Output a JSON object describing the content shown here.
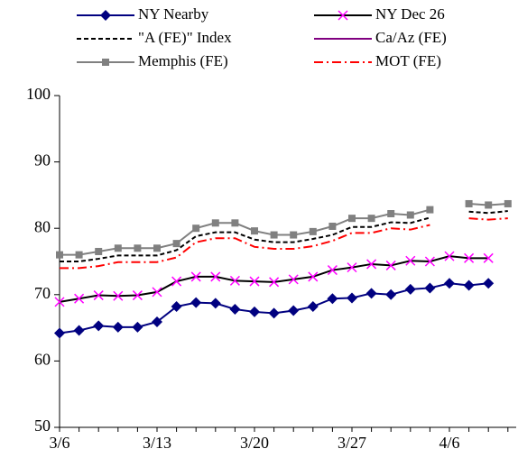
{
  "chart_data": {
    "type": "line",
    "categories": [
      "3/6",
      null,
      null,
      null,
      null,
      "3/13",
      null,
      null,
      null,
      null,
      "3/20",
      null,
      null,
      null,
      null,
      "3/27",
      null,
      null,
      null,
      null,
      "4/6",
      null,
      null,
      null
    ],
    "ylim": [
      50,
      100
    ],
    "yticks": [
      50,
      60,
      70,
      80,
      90,
      100
    ],
    "series": [
      {
        "name": "NY Nearby",
        "color": "#000080",
        "marker": "diamond",
        "dash": "solid",
        "values": [
          64.2,
          64.6,
          65.3,
          65.1,
          65.1,
          65.9,
          68.2,
          68.8,
          68.7,
          67.8,
          67.4,
          67.2,
          67.6,
          68.2,
          69.4,
          69.5,
          70.2,
          70.0,
          70.8,
          71.0,
          71.7,
          71.4,
          71.7,
          null
        ]
      },
      {
        "name": "NY Dec 26",
        "color": "#000000",
        "marker_color": "#ff00ff",
        "marker": "x",
        "dash": "solid",
        "values": [
          68.9,
          69.4,
          69.9,
          69.8,
          69.9,
          70.4,
          72.0,
          72.7,
          72.7,
          72.1,
          72.0,
          71.9,
          72.3,
          72.7,
          73.7,
          74.1,
          74.6,
          74.4,
          75.1,
          75.0,
          75.8,
          75.5,
          75.5,
          null
        ]
      },
      {
        "name": "\"A (FE)\" Index",
        "color": "#000000",
        "marker": "none",
        "dash": "dash",
        "values": [
          75.0,
          75.0,
          75.4,
          75.9,
          75.9,
          75.9,
          76.7,
          78.8,
          79.4,
          79.4,
          78.3,
          77.9,
          77.9,
          78.4,
          79.0,
          80.2,
          80.2,
          80.9,
          80.8,
          81.6,
          null,
          82.5,
          82.3,
          82.6
        ]
      },
      {
        "name": "Ca/Az (FE)",
        "color": "#800080",
        "marker": "none",
        "dash": "solid",
        "values": [
          null,
          null,
          null,
          null,
          null,
          null,
          null,
          null,
          null,
          null,
          null,
          null,
          null,
          null,
          null,
          null,
          null,
          null,
          null,
          null,
          null,
          null,
          null,
          null
        ]
      },
      {
        "name": "Memphis (FE)",
        "color": "#808080",
        "marker": "square",
        "dash": "solid",
        "values": [
          76.0,
          76.0,
          76.5,
          77.0,
          77.0,
          77.0,
          77.7,
          80.0,
          80.8,
          80.8,
          79.6,
          79.0,
          79.0,
          79.5,
          80.3,
          81.5,
          81.5,
          82.2,
          82.0,
          82.8,
          null,
          83.7,
          83.5,
          83.7
        ]
      },
      {
        "name": "MOT (FE)",
        "color": "#ff0000",
        "marker": "none",
        "dash": "dashdot",
        "values": [
          74.0,
          74.0,
          74.3,
          74.9,
          74.9,
          74.9,
          75.6,
          77.9,
          78.5,
          78.5,
          77.2,
          76.9,
          76.9,
          77.3,
          78.1,
          79.3,
          79.3,
          80.0,
          79.8,
          80.5,
          null,
          81.5,
          81.3,
          81.5
        ]
      }
    ]
  }
}
